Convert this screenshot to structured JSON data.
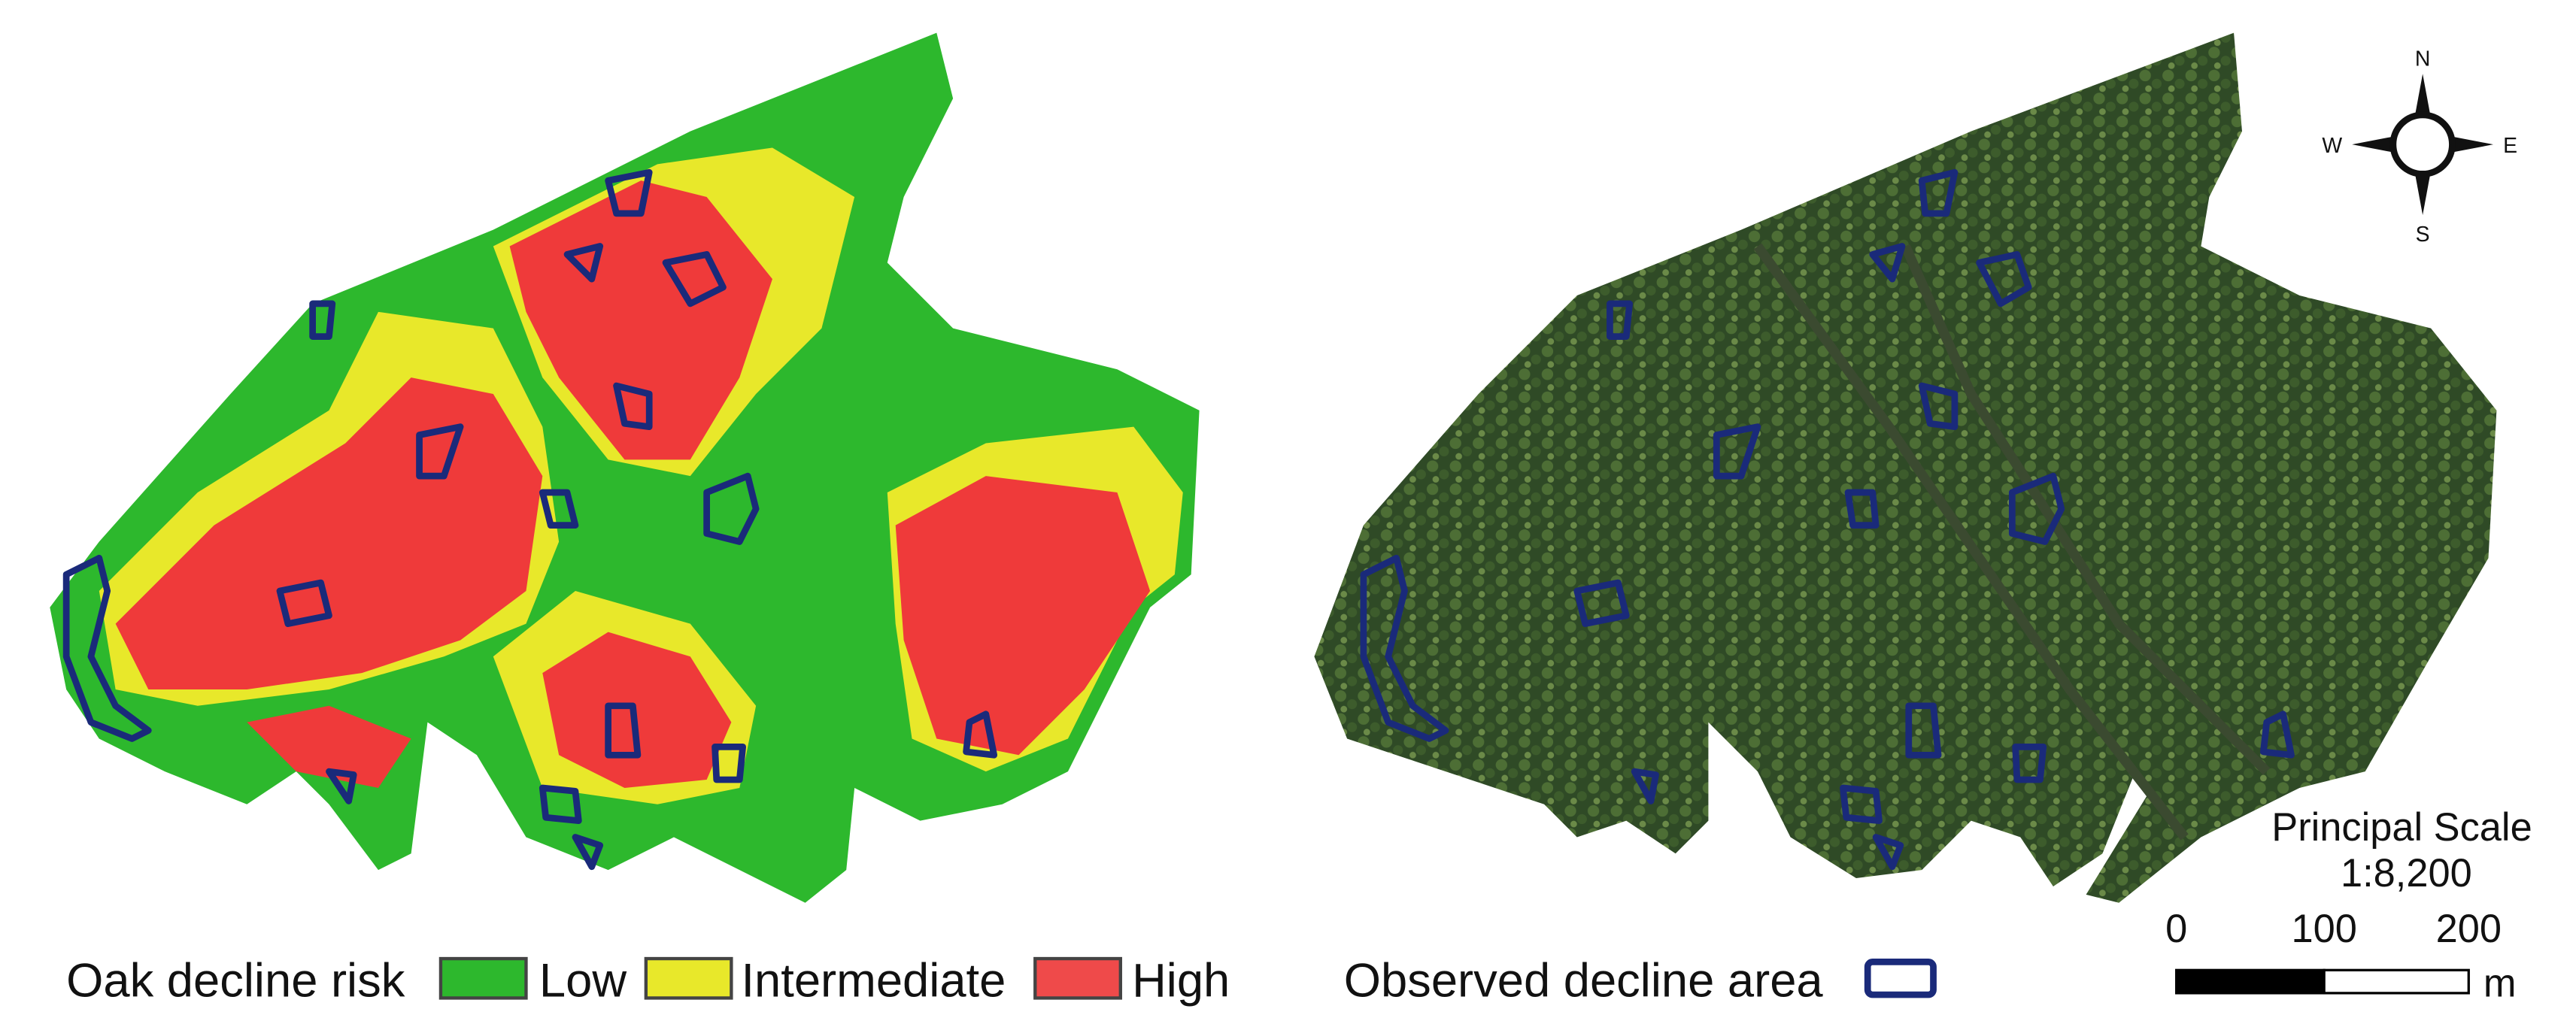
{
  "legend_left": {
    "title": "Oak decline risk",
    "items": [
      "Low",
      "Intermediate",
      "High"
    ]
  },
  "legend_right": {
    "label": "Observed decline area"
  },
  "compass": {
    "north": "N",
    "east": "E",
    "south": "S",
    "west": "W"
  },
  "scale": {
    "title": "Principal Scale",
    "ratio": "1:8,200",
    "ticks": [
      "0",
      "100",
      "200"
    ],
    "unit": "m"
  }
}
